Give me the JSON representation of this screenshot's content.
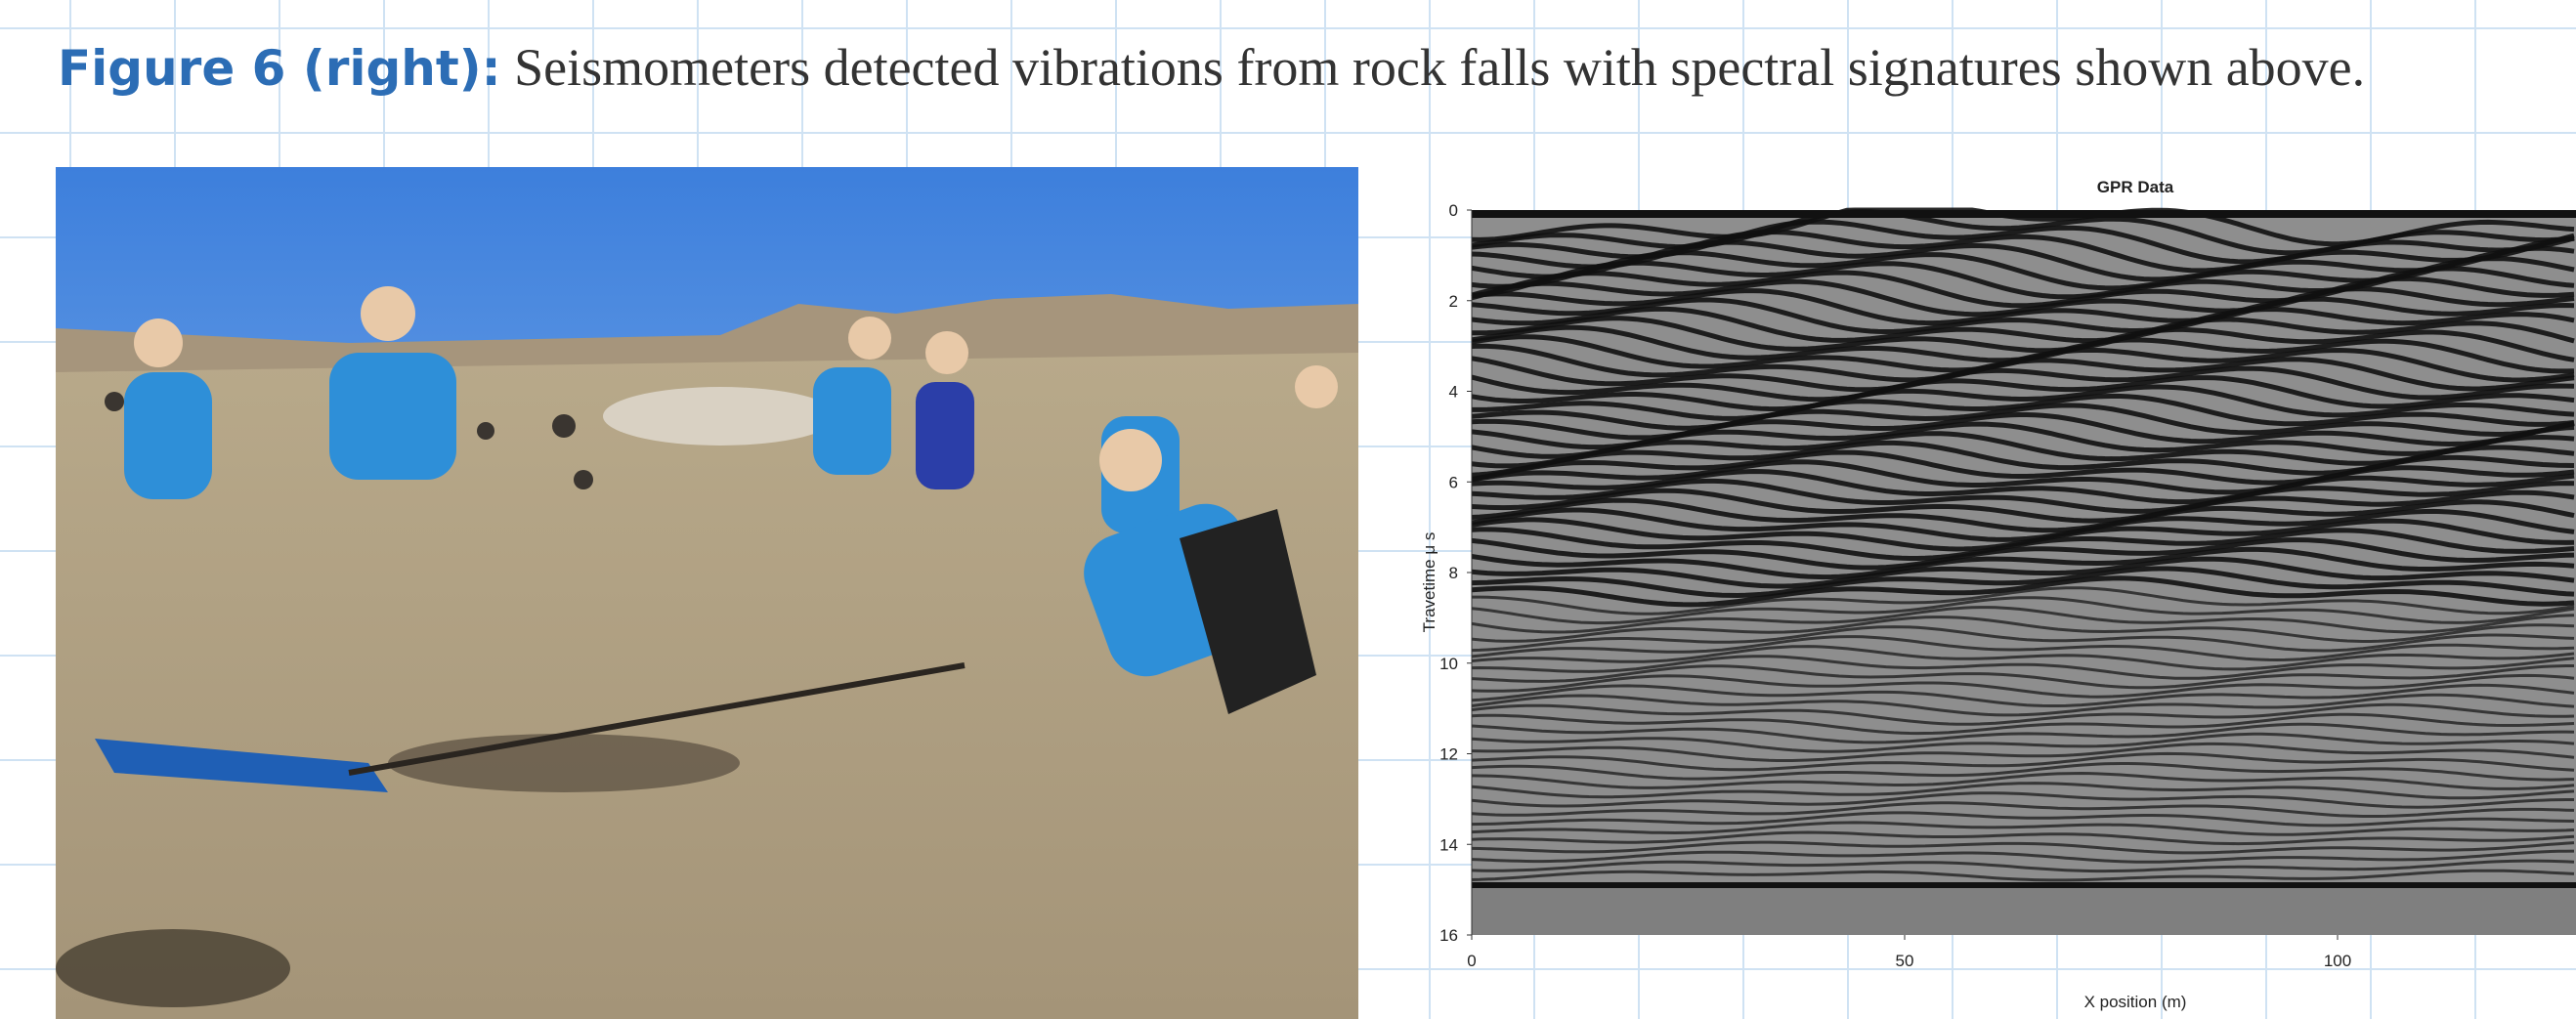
{
  "caption": {
    "label": "Figure 6 (right):",
    "text": "Seismometers detected vibrations from rock falls with spectral signatures shown above."
  },
  "gpr_plot": {
    "title": "GPR Data",
    "x_label": "X position (m)",
    "y_label": "Travetime μ s",
    "xticks": [
      0,
      50,
      100
    ],
    "yticks": [
      0,
      2,
      4,
      6,
      8,
      10,
      12,
      14,
      16
    ],
    "ylim": [
      0,
      16
    ]
  }
}
